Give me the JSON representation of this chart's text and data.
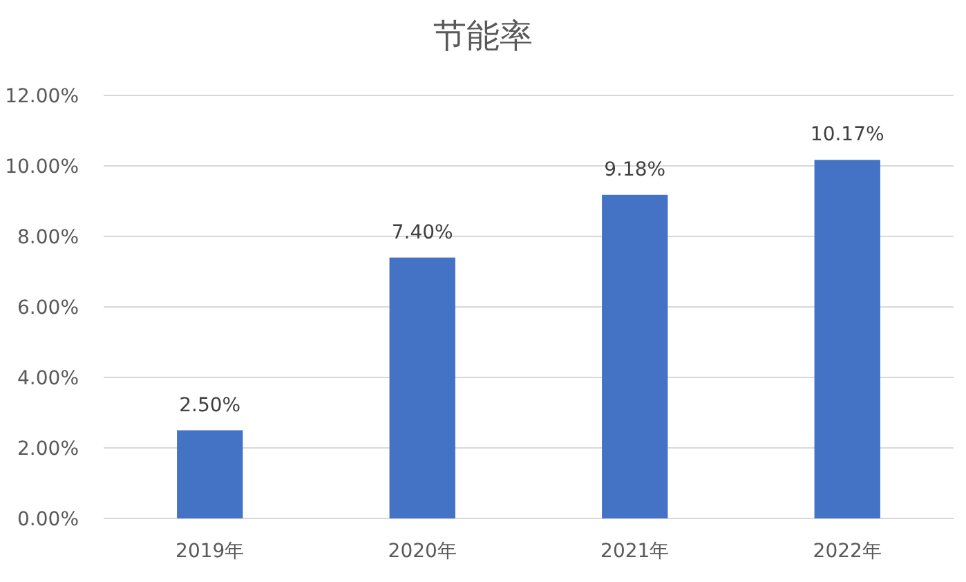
{
  "chart_data": {
    "type": "bar",
    "title": "节能率",
    "categories": [
      "2019年",
      "2020年",
      "2021年",
      "2022年"
    ],
    "values": [
      2.5,
      7.4,
      9.18,
      10.17
    ],
    "value_labels": [
      "2.50%",
      "7.40%",
      "9.18%",
      "10.17%"
    ],
    "color": "#4472c4",
    "ylim": [
      0,
      12
    ],
    "yticks": [
      {
        "value": 0,
        "label": "0.00%"
      },
      {
        "value": 2,
        "label": "2.00%"
      },
      {
        "value": 4,
        "label": "4.00%"
      },
      {
        "value": 6,
        "label": "6.00%"
      },
      {
        "value": 8,
        "label": "8.00%"
      },
      {
        "value": 10,
        "label": "10.00%"
      },
      {
        "value": 12,
        "label": "12.00%"
      }
    ],
    "grid": "y"
  }
}
